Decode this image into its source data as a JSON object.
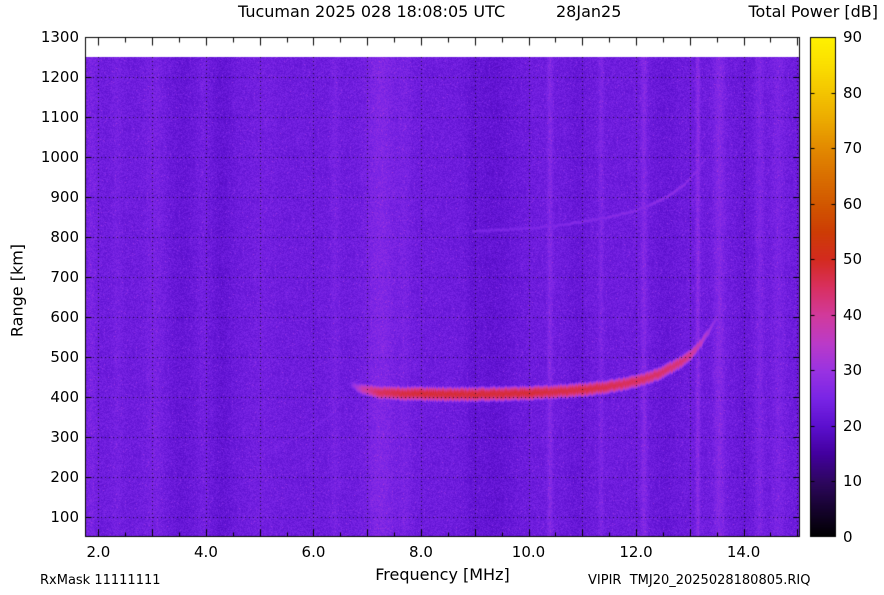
{
  "footer": {
    "rx_mask": "RxMask 11111111",
    "file_name": "VIPIR  TMJ20_2025028180805.RIQ"
  },
  "chart_data": {
    "type": "heatmap",
    "title": "Tucuman 2025 028 18:08:05 UTC",
    "date_label": "28Jan25",
    "colorbar_label": "Total Power [dB]",
    "xlabel": "Frequency [MHz]",
    "ylabel": "Range [km]",
    "x_range_mhz": [
      1.75,
      15.05
    ],
    "y_range_km": [
      50,
      1300
    ],
    "x_tick_labels": [
      {
        "value": 2,
        "label": "2.0"
      },
      {
        "value": 4,
        "label": "4.0"
      },
      {
        "value": 6,
        "label": "6.0"
      },
      {
        "value": 8,
        "label": "8.0"
      },
      {
        "value": 10,
        "label": "10.0"
      },
      {
        "value": 12,
        "label": "12.0"
      },
      {
        "value": 14,
        "label": "14.0"
      }
    ],
    "y_tick_labels": [
      {
        "value": 100,
        "label": "100"
      },
      {
        "value": 200,
        "label": "200"
      },
      {
        "value": 300,
        "label": "300"
      },
      {
        "value": 400,
        "label": "400"
      },
      {
        "value": 500,
        "label": "500"
      },
      {
        "value": 600,
        "label": "600"
      },
      {
        "value": 700,
        "label": "700"
      },
      {
        "value": 800,
        "label": "800"
      },
      {
        "value": 900,
        "label": "900"
      },
      {
        "value": 1000,
        "label": "1000"
      },
      {
        "value": 1100,
        "label": "1100"
      },
      {
        "value": 1200,
        "label": "1200"
      },
      {
        "value": 1300,
        "label": "1300"
      }
    ],
    "grid": {
      "x_mhz": [
        2,
        3,
        4,
        5,
        6,
        7,
        8,
        9,
        10,
        11,
        12,
        13,
        14,
        15
      ],
      "y_km": [
        100,
        200,
        300,
        400,
        500,
        600,
        700,
        800,
        900,
        1000,
        1100,
        1200
      ],
      "x_minor_step_mhz": 0.5
    },
    "colorbar": {
      "min": 0,
      "max": 90,
      "units": "dB",
      "ticks": [
        0,
        10,
        20,
        30,
        40,
        50,
        60,
        70,
        80,
        90
      ],
      "stops": [
        {
          "v": 0,
          "c": "#000000"
        },
        {
          "v": 5,
          "c": "#16032e"
        },
        {
          "v": 10,
          "c": "#2e0760"
        },
        {
          "v": 15,
          "c": "#43009f"
        },
        {
          "v": 20,
          "c": "#5c10cf"
        },
        {
          "v": 25,
          "c": "#7a25e6"
        },
        {
          "v": 30,
          "c": "#9a33e2"
        },
        {
          "v": 35,
          "c": "#bc3bc8"
        },
        {
          "v": 40,
          "c": "#d23a9c"
        },
        {
          "v": 45,
          "c": "#d93060"
        },
        {
          "v": 50,
          "c": "#d42b20"
        },
        {
          "v": 55,
          "c": "#cd3d05"
        },
        {
          "v": 60,
          "c": "#d25800"
        },
        {
          "v": 65,
          "c": "#da7000"
        },
        {
          "v": 70,
          "c": "#e38a00"
        },
        {
          "v": 75,
          "c": "#ecaa00"
        },
        {
          "v": 80,
          "c": "#f4c500"
        },
        {
          "v": 85,
          "c": "#fbdf00"
        },
        {
          "v": 90,
          "c": "#fff200"
        }
      ]
    },
    "background": {
      "mean_db": 23,
      "noise_db": 2.2,
      "data_top_km": 1250,
      "speckle_prob": 0.04,
      "speckle_db": 5
    },
    "rfi_stripes": [
      {
        "f": 1.85,
        "w": 0.12,
        "d": 2.0
      },
      {
        "f": 2.35,
        "w": 0.1,
        "d": 1.2
      },
      {
        "f": 3.05,
        "w": 0.18,
        "d": 1.6
      },
      {
        "f": 3.55,
        "w": 0.25,
        "d": -1.4
      },
      {
        "f": 3.95,
        "w": 0.1,
        "d": 1.0
      },
      {
        "f": 4.3,
        "w": 0.2,
        "d": -1.8
      },
      {
        "f": 5.05,
        "w": 0.25,
        "d": 0.8
      },
      {
        "f": 6.4,
        "w": 0.08,
        "d": 1.5
      },
      {
        "f": 7.25,
        "w": 0.28,
        "d": 3.0
      },
      {
        "f": 7.7,
        "w": 0.12,
        "d": 1.5
      },
      {
        "f": 8.95,
        "w": 0.1,
        "d": -1.0
      },
      {
        "f": 9.35,
        "w": 0.4,
        "d": -2.0
      },
      {
        "f": 10.4,
        "w": 0.05,
        "d": 3.5
      },
      {
        "f": 10.9,
        "w": 0.18,
        "d": -1.2
      },
      {
        "f": 11.35,
        "w": 0.05,
        "d": 2.5
      },
      {
        "f": 12.15,
        "w": 0.06,
        "d": 3.5
      },
      {
        "f": 12.55,
        "w": 0.25,
        "d": -1.2
      },
      {
        "f": 13.15,
        "w": 0.04,
        "d": 4.5
      },
      {
        "f": 13.55,
        "w": 0.1,
        "d": 3.5
      },
      {
        "f": 14.0,
        "w": 0.15,
        "d": -1.0
      },
      {
        "f": 14.3,
        "w": 0.08,
        "d": 2.5
      },
      {
        "f": 14.65,
        "w": 0.12,
        "d": 2.0
      }
    ],
    "traces": [
      {
        "name": "f-region-first-hop",
        "thickness_km": 26,
        "falloff_db": 10,
        "points": [
          [
            6.7,
            432,
            27
          ],
          [
            6.9,
            420,
            38
          ],
          [
            7.2,
            413,
            45
          ],
          [
            7.6,
            410,
            47
          ],
          [
            8.0,
            409,
            48
          ],
          [
            8.5,
            408,
            48
          ],
          [
            9.0,
            408,
            48
          ],
          [
            9.5,
            409,
            48
          ],
          [
            10.0,
            411,
            48
          ],
          [
            10.5,
            414,
            47
          ],
          [
            11.0,
            419,
            47
          ],
          [
            11.5,
            427,
            46
          ],
          [
            12.0,
            440,
            45
          ],
          [
            12.4,
            458,
            44
          ],
          [
            12.8,
            486,
            43
          ],
          [
            13.0,
            506,
            41
          ],
          [
            13.2,
            536,
            36
          ],
          [
            13.35,
            566,
            31
          ],
          [
            13.5,
            600,
            27
          ],
          [
            13.62,
            628,
            25
          ]
        ]
      },
      {
        "name": "f-region-second-hop",
        "thickness_km": 14,
        "falloff_db": 8,
        "points": [
          [
            8.95,
            815,
            25.0
          ],
          [
            9.5,
            819,
            25.5
          ],
          [
            10.0,
            823,
            26.0
          ],
          [
            10.5,
            829,
            26.0
          ],
          [
            11.0,
            839,
            26.5
          ],
          [
            11.5,
            851,
            27.0
          ],
          [
            12.0,
            868,
            27.0
          ],
          [
            12.3,
            884,
            27.5
          ],
          [
            12.6,
            904,
            28.0
          ],
          [
            12.9,
            934,
            28.0
          ],
          [
            13.1,
            963,
            27.5
          ],
          [
            13.28,
            998,
            26.5
          ]
        ]
      },
      {
        "name": "leading-edge-faint-trace",
        "thickness_km": 8,
        "falloff_db": 6,
        "points": [
          [
            5.15,
            263,
            24.5
          ],
          [
            5.5,
            288,
            25.0
          ],
          [
            5.9,
            315,
            25.2
          ],
          [
            6.2,
            345,
            25.2
          ],
          [
            6.45,
            377,
            25.2
          ],
          [
            6.62,
            408,
            25.0
          ]
        ]
      }
    ]
  }
}
